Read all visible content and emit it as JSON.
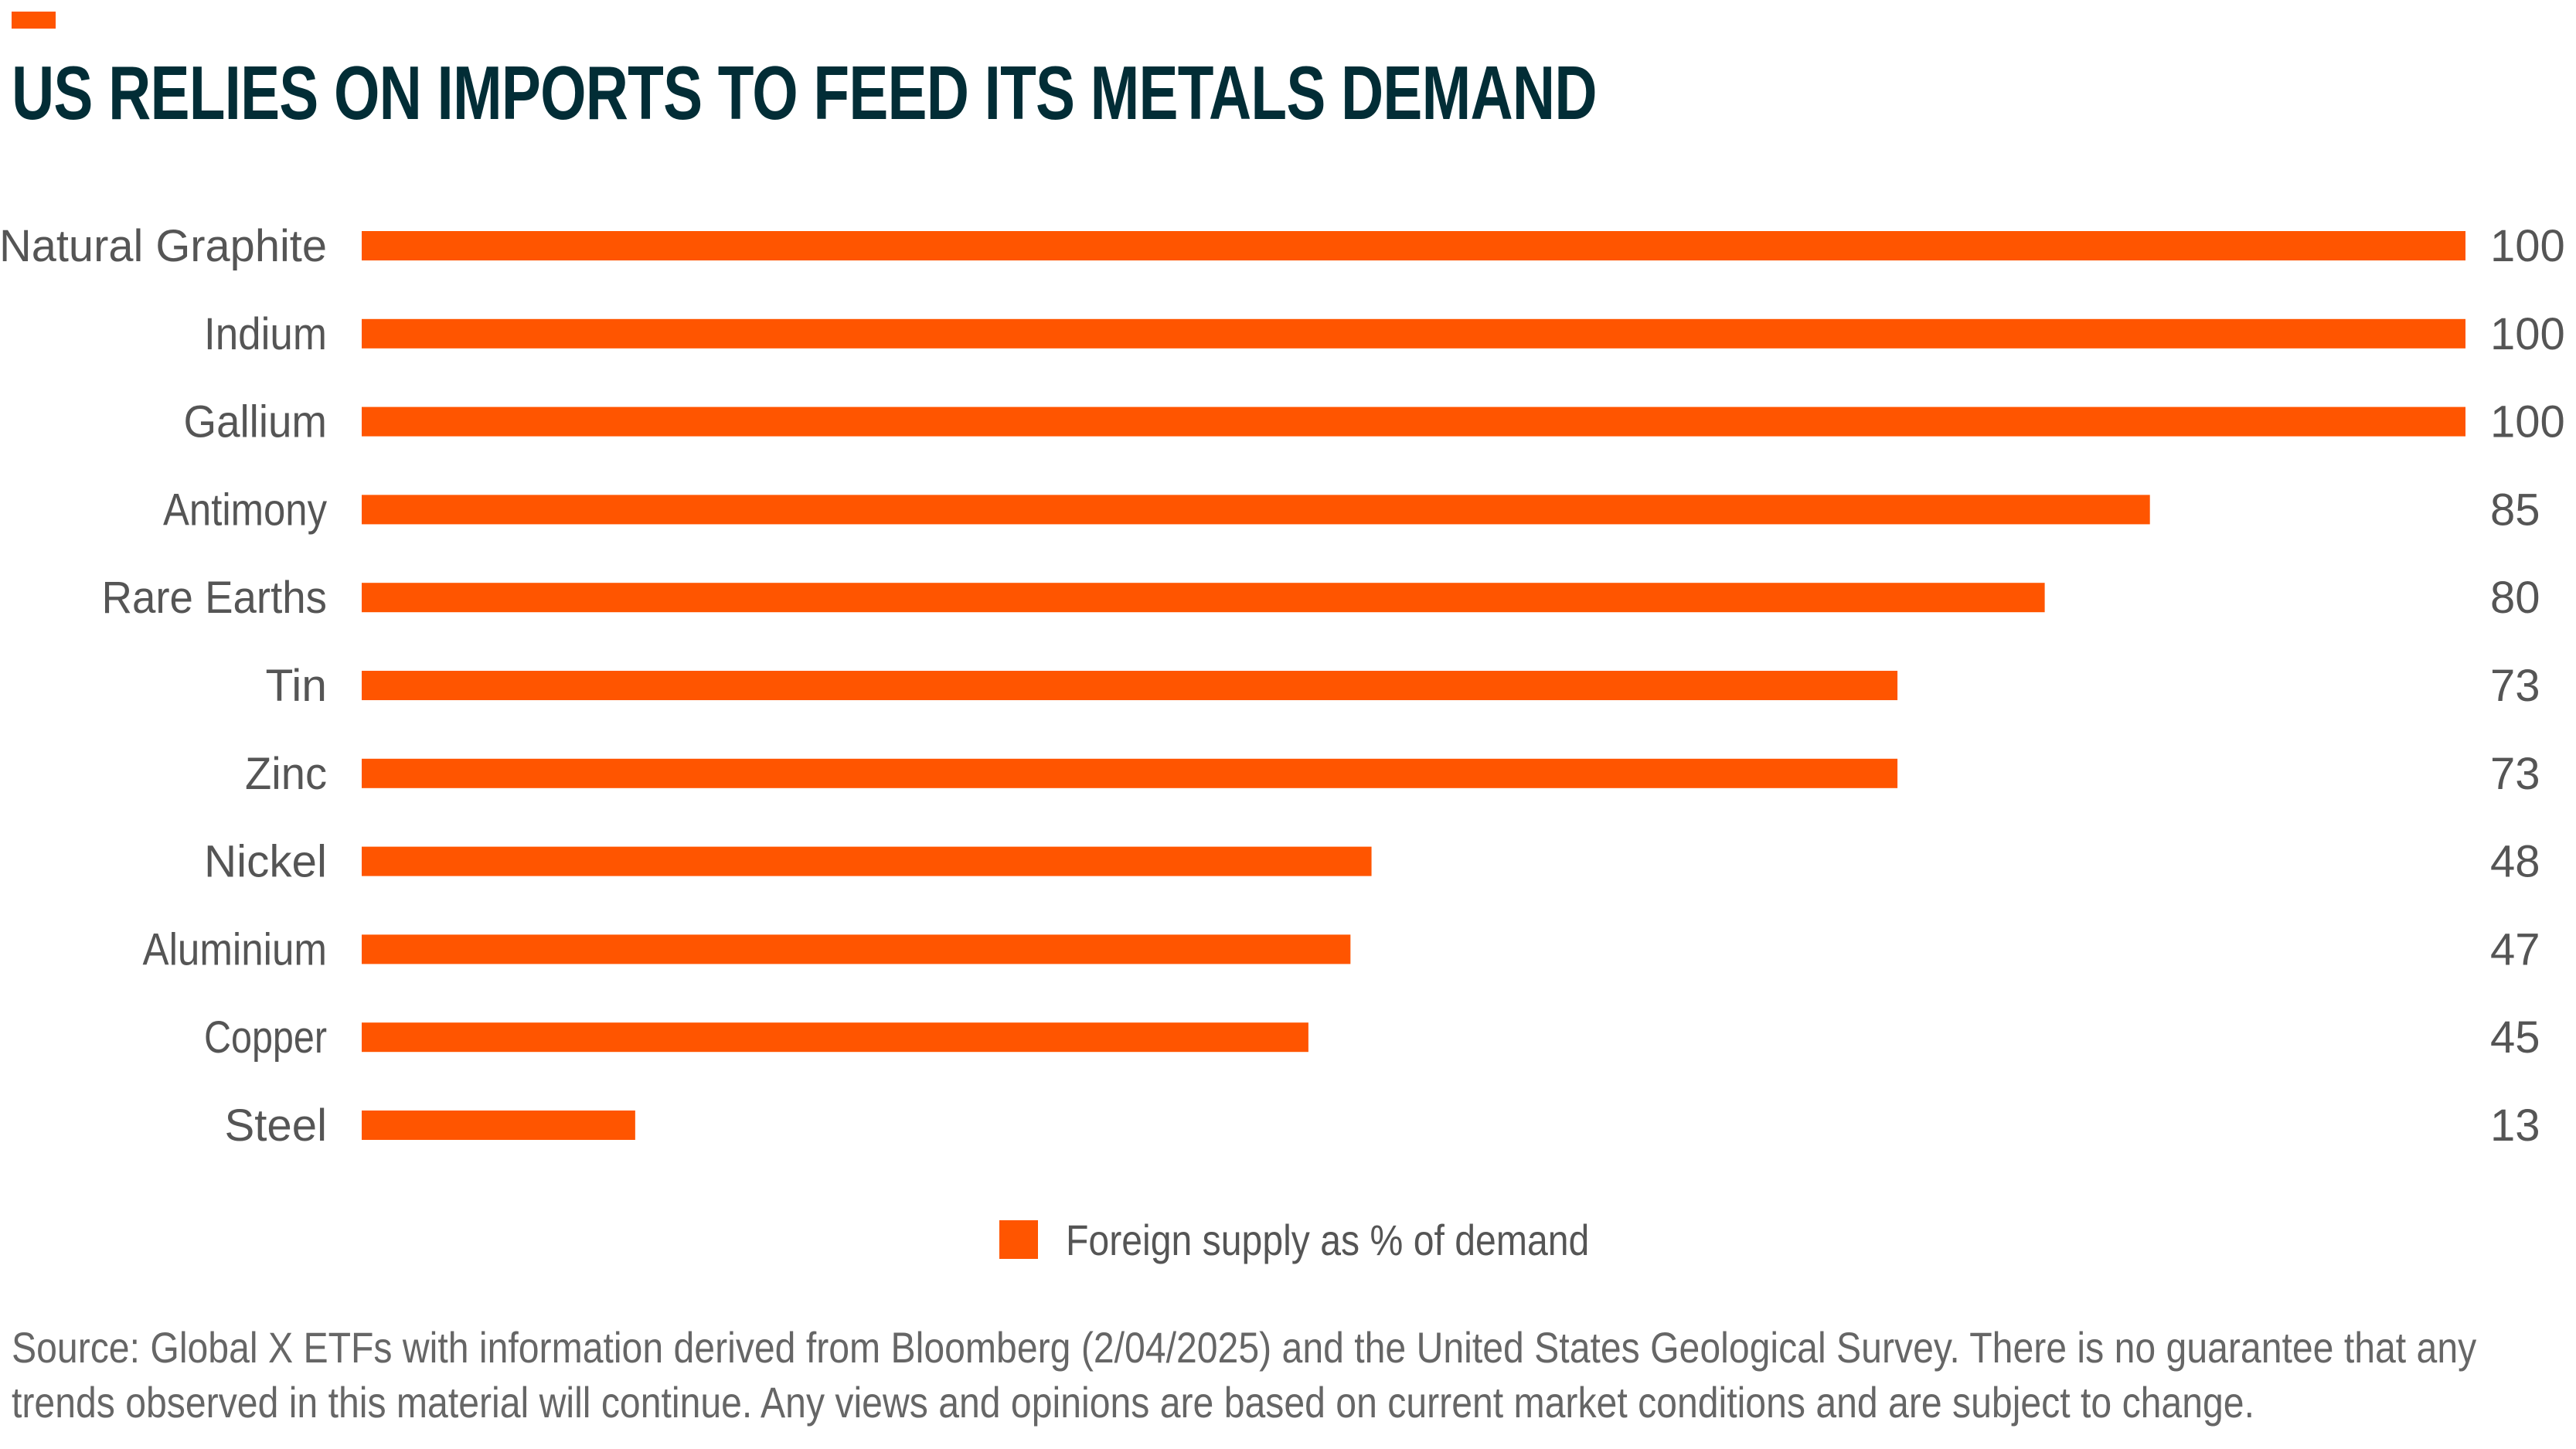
{
  "title": "US RELIES ON IMPORTS TO FEED ITS METALS DEMAND",
  "colors": {
    "accent": "#ff5500",
    "title": "#022d36",
    "text": "#555555"
  },
  "chart_data": {
    "type": "bar",
    "orientation": "horizontal",
    "title": "US RELIES ON IMPORTS TO FEED ITS METALS DEMAND",
    "categories": [
      "Natural Graphite",
      "Indium",
      "Gallium",
      "Antimony",
      "Rare Earths",
      "Tin",
      "Zinc",
      "Nickel",
      "Aluminium",
      "Copper",
      "Steel"
    ],
    "series": [
      {
        "name": "Foreign supply as % of demand",
        "values": [
          100,
          100,
          100,
          85,
          80,
          73,
          73,
          48,
          47,
          45,
          13
        ],
        "color": "#ff5500"
      }
    ],
    "xlim": [
      0,
      100
    ],
    "grid": false,
    "data_labels": true,
    "legend": "bottom-center"
  },
  "legend": {
    "label": "Foreign supply as % of demand"
  },
  "source": {
    "lines": [
      "Source: Global X ETFs with information derived from Bloomberg (2/04/2025) and the United States Geological Survey. There is no guarantee that any",
      "trends observed in this material will continue. Any views and opinions are based on current market conditions and are subject to change."
    ]
  }
}
